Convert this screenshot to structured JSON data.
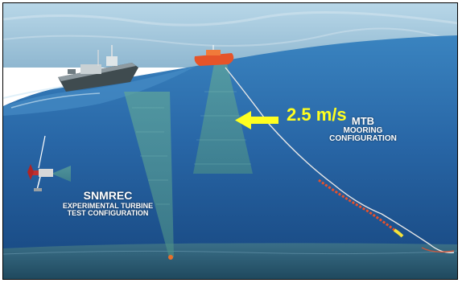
{
  "scene": {
    "current_speed_label": "2.5 m/s",
    "mooring_label_lines": [
      "MTB",
      "MOORING",
      "CONFIGURATION"
    ],
    "turbine_title": "SNMREC",
    "turbine_subtitle_lines": [
      "EXPERIMENTAL TURBINE",
      "TEST CONFIGURATION"
    ]
  },
  "colors": {
    "sky": "#9ec4dc",
    "sea_surface": "#2f77b3",
    "deep_sea": "#1c4f8a",
    "seafloor": "#2c5e79",
    "speed_text": "#ffff1f",
    "arrow": "#ffff1f",
    "buoy_line": "#e8502a",
    "float_yellow": "#f4e23a"
  },
  "icons": {
    "vessel": "research-vessel-icon",
    "buoy": "surface-buoy-icon",
    "turbine": "ocean-turbine-icon",
    "arrow": "current-direction-arrow-icon"
  }
}
